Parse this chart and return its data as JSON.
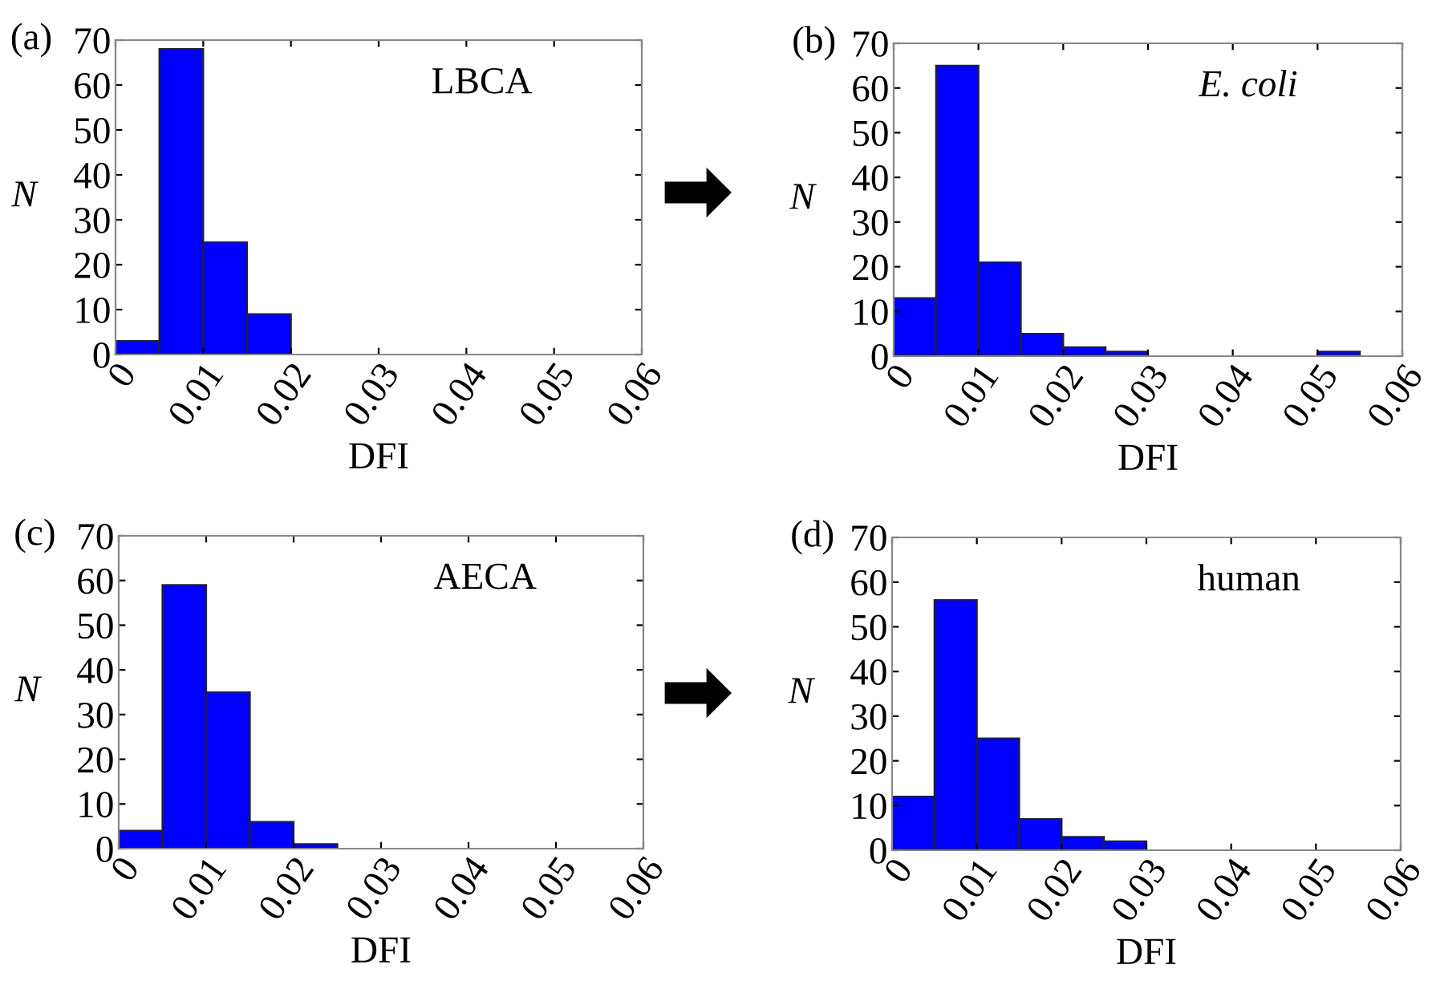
{
  "chart_data": [
    {
      "type": "histogram",
      "title": "(a)",
      "xlabel": "DFI",
      "ylabel": "N",
      "annotations": [
        "LBCA"
      ],
      "bins": [
        0,
        0.005,
        0.01,
        0.015,
        0.02,
        0.025,
        0.03,
        0.035,
        0.04,
        0.045,
        0.05,
        0.055,
        0.06
      ],
      "values": [
        3,
        68,
        25,
        9,
        0,
        0,
        0,
        0,
        0,
        0,
        0,
        0
      ],
      "color": "#0000ff",
      "xlim": [
        0,
        0.06
      ],
      "xticks": [
        0,
        0.01,
        0.02,
        0.03,
        0.04,
        0.05,
        0.06
      ],
      "ylim": [
        0,
        70
      ],
      "yticks": [
        0,
        10,
        20,
        30,
        40,
        50,
        60,
        70
      ],
      "grid": false
    },
    {
      "type": "histogram",
      "title": "(b)",
      "xlabel": "DFI",
      "ylabel": "N",
      "annotations": [
        "E. coli"
      ],
      "bins": [
        0,
        0.005,
        0.01,
        0.015,
        0.02,
        0.025,
        0.03,
        0.035,
        0.04,
        0.045,
        0.05,
        0.055,
        0.06
      ],
      "values": [
        13,
        65,
        21,
        5,
        2,
        1,
        0,
        0,
        0,
        0,
        1,
        0
      ],
      "color": "#0000ff",
      "xlim": [
        0,
        0.06
      ],
      "xticks": [
        0,
        0.01,
        0.02,
        0.03,
        0.04,
        0.05,
        0.06
      ],
      "ylim": [
        0,
        70
      ],
      "yticks": [
        0,
        10,
        20,
        30,
        40,
        50,
        60,
        70
      ],
      "grid": false
    },
    {
      "type": "histogram",
      "title": "(c)",
      "xlabel": "DFI",
      "ylabel": "N",
      "annotations": [
        "AECA"
      ],
      "bins": [
        0,
        0.005,
        0.01,
        0.015,
        0.02,
        0.025,
        0.03,
        0.035,
        0.04,
        0.045,
        0.05,
        0.055,
        0.06
      ],
      "values": [
        4,
        59,
        35,
        6,
        1,
        0,
        0,
        0,
        0,
        0,
        0,
        0
      ],
      "color": "#0000ff",
      "xlim": [
        0,
        0.06
      ],
      "xticks": [
        0,
        0.01,
        0.02,
        0.03,
        0.04,
        0.05,
        0.06
      ],
      "ylim": [
        0,
        70
      ],
      "yticks": [
        0,
        10,
        20,
        30,
        40,
        50,
        60,
        70
      ],
      "grid": false
    },
    {
      "type": "histogram",
      "title": "(d)",
      "xlabel": "DFI",
      "ylabel": "N",
      "annotations": [
        "human"
      ],
      "bins": [
        0,
        0.005,
        0.01,
        0.015,
        0.02,
        0.025,
        0.03,
        0.035,
        0.04,
        0.045,
        0.05,
        0.055,
        0.06
      ],
      "values": [
        12,
        56,
        25,
        7,
        3,
        2,
        0,
        0,
        0,
        0,
        0,
        0
      ],
      "color": "#0000ff",
      "xlim": [
        0,
        0.06
      ],
      "xticks": [
        0,
        0.01,
        0.02,
        0.03,
        0.04,
        0.05,
        0.06
      ],
      "ylim": [
        0,
        70
      ],
      "yticks": [
        0,
        10,
        20,
        30,
        40,
        50,
        60,
        70
      ],
      "grid": false
    }
  ]
}
